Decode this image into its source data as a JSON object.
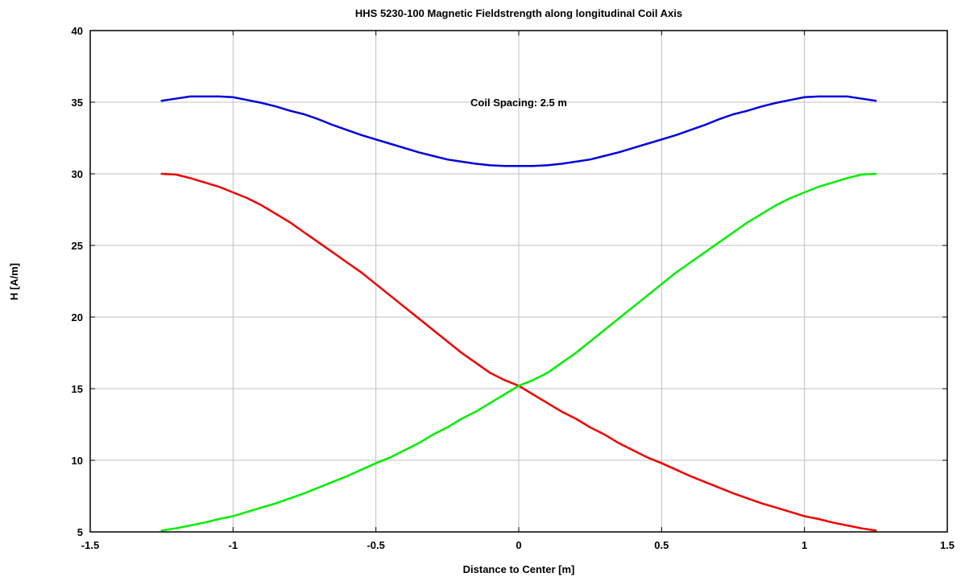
{
  "chart_data": {
    "type": "line",
    "title": "HHS 5230-100 Magnetic Fieldstrength along longitudinal Coil Axis",
    "xlabel": "Distance to Center [m]",
    "ylabel": "H [A/m]",
    "xlim": [
      -1.5,
      1.5
    ],
    "ylim": [
      5,
      40
    ],
    "xticks": [
      -1.5,
      -1,
      -0.5,
      0,
      0.5,
      1,
      1.5
    ],
    "xtick_labels": [
      "-1.5",
      "-1",
      "-0.5",
      "0",
      "0.5",
      "1",
      "1.5"
    ],
    "yticks": [
      5,
      10,
      15,
      20,
      25,
      30,
      35,
      40
    ],
    "ytick_labels": [
      "5",
      "10",
      "15",
      "20",
      "25",
      "30",
      "35",
      "40"
    ],
    "grid": true,
    "annotation": {
      "text": "Coil Spacing: 2.5 m",
      "x": 0,
      "y": 35
    },
    "x": [
      -1.25,
      -1.2,
      -1.15,
      -1.1,
      -1.05,
      -1.0,
      -0.95,
      -0.9,
      -0.85,
      -0.8,
      -0.75,
      -0.7,
      -0.65,
      -0.6,
      -0.55,
      -0.5,
      -0.45,
      -0.4,
      -0.35,
      -0.3,
      -0.25,
      -0.2,
      -0.15,
      -0.1,
      -0.05,
      0.0,
      0.05,
      0.1,
      0.15,
      0.2,
      0.25,
      0.3,
      0.35,
      0.4,
      0.45,
      0.5,
      0.55,
      0.6,
      0.65,
      0.7,
      0.75,
      0.8,
      0.85,
      0.9,
      0.95,
      1.0,
      1.05,
      1.1,
      1.15,
      1.2,
      1.25
    ],
    "series": [
      {
        "color": "#0000dd",
        "values": [
          35.1,
          35.25,
          35.4,
          35.4,
          35.4,
          35.35,
          35.15,
          34.95,
          34.7,
          34.4,
          34.15,
          33.8,
          33.4,
          33.05,
          32.7,
          32.4,
          32.1,
          31.8,
          31.5,
          31.25,
          31.0,
          30.85,
          30.7,
          30.6,
          30.55,
          30.55,
          30.55,
          30.6,
          30.7,
          30.85,
          31.0,
          31.25,
          31.5,
          31.8,
          32.1,
          32.4,
          32.7,
          33.05,
          33.4,
          33.8,
          34.15,
          34.4,
          34.7,
          34.95,
          35.15,
          35.35,
          35.4,
          35.4,
          35.4,
          35.25,
          35.1
        ]
      },
      {
        "color": "#ee0000",
        "values": [
          30.0,
          29.95,
          29.7,
          29.4,
          29.1,
          28.7,
          28.3,
          27.8,
          27.2,
          26.6,
          25.9,
          25.2,
          24.5,
          23.8,
          23.1,
          22.3,
          21.5,
          20.7,
          19.9,
          19.1,
          18.3,
          17.5,
          16.8,
          16.1,
          15.6,
          15.2,
          14.6,
          14.0,
          13.4,
          12.9,
          12.3,
          11.8,
          11.2,
          10.7,
          10.2,
          9.8,
          9.35,
          8.9,
          8.5,
          8.1,
          7.7,
          7.35,
          7.0,
          6.7,
          6.4,
          6.1,
          5.9,
          5.65,
          5.45,
          5.25,
          5.1
        ]
      },
      {
        "color": "#00ee00",
        "values": [
          5.1,
          5.25,
          5.45,
          5.65,
          5.9,
          6.1,
          6.4,
          6.7,
          7.0,
          7.35,
          7.7,
          8.1,
          8.5,
          8.9,
          9.35,
          9.8,
          10.2,
          10.7,
          11.2,
          11.8,
          12.3,
          12.9,
          13.4,
          14.0,
          14.6,
          15.2,
          15.6,
          16.1,
          16.8,
          17.5,
          18.3,
          19.1,
          19.9,
          20.7,
          21.5,
          22.3,
          23.1,
          23.8,
          24.5,
          25.2,
          25.9,
          26.6,
          27.2,
          27.8,
          28.3,
          28.7,
          29.1,
          29.4,
          29.7,
          29.95,
          30.0
        ]
      }
    ]
  }
}
